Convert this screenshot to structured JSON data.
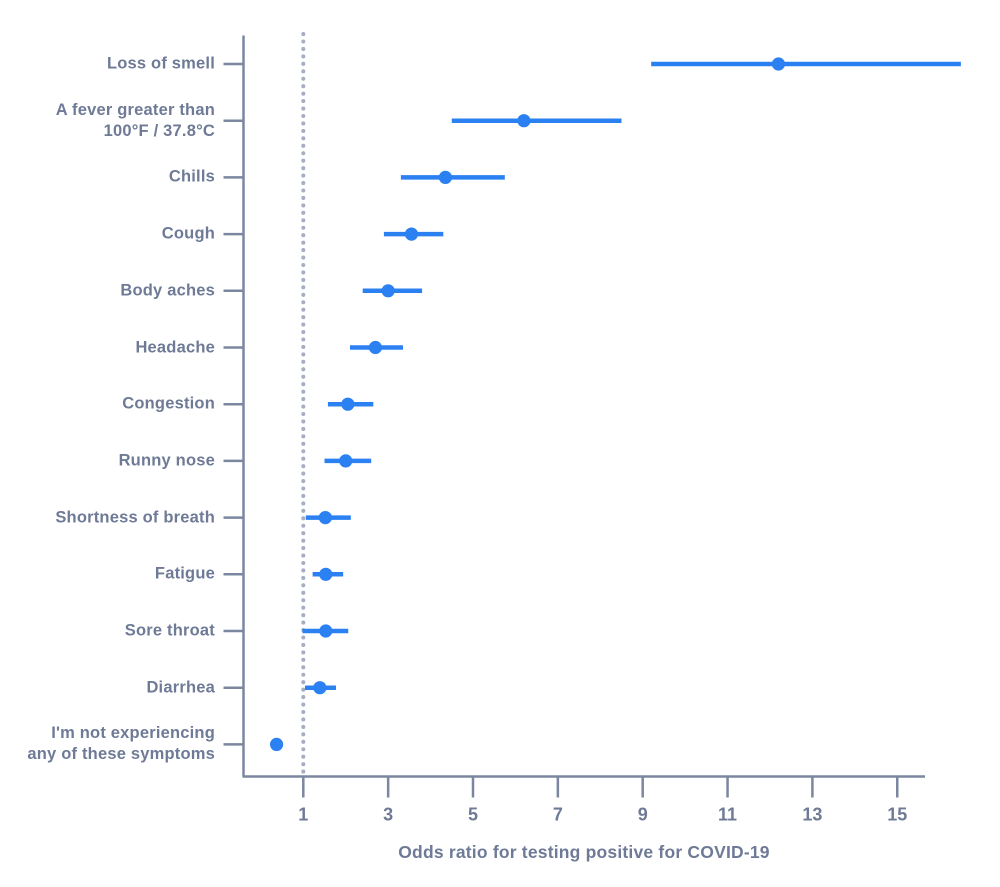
{
  "chart_data": {
    "type": "scatter",
    "variant": "forest-plot-dot-with-ci",
    "title": "",
    "xlabel": "Odds ratio for testing positive for COVID-19",
    "ylabel": "",
    "x_ticks": [
      1,
      3,
      5,
      7,
      9,
      11,
      13,
      15
    ],
    "xlim": [
      -0.42,
      16.5
    ],
    "reference_line_x": 1,
    "reference_line_style": "dotted",
    "grid": false,
    "legend": false,
    "categories": [
      "Loss of smell",
      "A fever greater than 100°F / 37.8°C",
      "Chills",
      "Cough",
      "Body aches",
      "Headache",
      "Congestion",
      "Runny nose",
      "Shortness of breath",
      "Fatigue",
      "Sore throat",
      "Diarrhea",
      "I'm not experiencing any of these symptoms"
    ],
    "rows": [
      {
        "label_lines": [
          "Loss of smell"
        ],
        "odds_ratio": 12.2,
        "ci_low": 9.2,
        "ci_high": 16.5,
        "ci_high_clipped": true
      },
      {
        "label_lines": [
          "A fever greater than",
          "100°F / 37.8°C"
        ],
        "odds_ratio": 6.2,
        "ci_low": 4.5,
        "ci_high": 8.5,
        "ci_high_clipped": false
      },
      {
        "label_lines": [
          "Chills"
        ],
        "odds_ratio": 4.35,
        "ci_low": 3.3,
        "ci_high": 5.75,
        "ci_high_clipped": false
      },
      {
        "label_lines": [
          "Cough"
        ],
        "odds_ratio": 3.55,
        "ci_low": 2.9,
        "ci_high": 4.3,
        "ci_high_clipped": false
      },
      {
        "label_lines": [
          "Body aches"
        ],
        "odds_ratio": 3.0,
        "ci_low": 2.4,
        "ci_high": 3.8,
        "ci_high_clipped": false
      },
      {
        "label_lines": [
          "Headache"
        ],
        "odds_ratio": 2.7,
        "ci_low": 2.1,
        "ci_high": 3.35,
        "ci_high_clipped": false
      },
      {
        "label_lines": [
          "Congestion"
        ],
        "odds_ratio": 2.05,
        "ci_low": 1.58,
        "ci_high": 2.65,
        "ci_high_clipped": false
      },
      {
        "label_lines": [
          "Runny nose"
        ],
        "odds_ratio": 2.0,
        "ci_low": 1.5,
        "ci_high": 2.6,
        "ci_high_clipped": false
      },
      {
        "label_lines": [
          "Shortness of breath"
        ],
        "odds_ratio": 1.52,
        "ci_low": 1.06,
        "ci_high": 2.12,
        "ci_high_clipped": false
      },
      {
        "label_lines": [
          "Fatigue"
        ],
        "odds_ratio": 1.53,
        "ci_low": 1.22,
        "ci_high": 1.94,
        "ci_high_clipped": false
      },
      {
        "label_lines": [
          "Sore throat"
        ],
        "odds_ratio": 1.53,
        "ci_low": 0.98,
        "ci_high": 2.06,
        "ci_high_clipped": false
      },
      {
        "label_lines": [
          "Diarrhea"
        ],
        "odds_ratio": 1.39,
        "ci_low": 1.04,
        "ci_high": 1.77,
        "ci_high_clipped": false
      },
      {
        "label_lines": [
          "I'm not experiencing",
          "any of these symptoms"
        ],
        "odds_ratio": 0.37,
        "ci_low": 0.35,
        "ci_high": 0.4,
        "ci_high_clipped": false
      }
    ]
  },
  "colors": {
    "point_blue": "#2b80f2",
    "label_text": "#6e7a96",
    "axis": "#7b869f",
    "tick_label": "#6e7a96",
    "reference_dots": "#a4aec4",
    "background": "#ffffff"
  }
}
